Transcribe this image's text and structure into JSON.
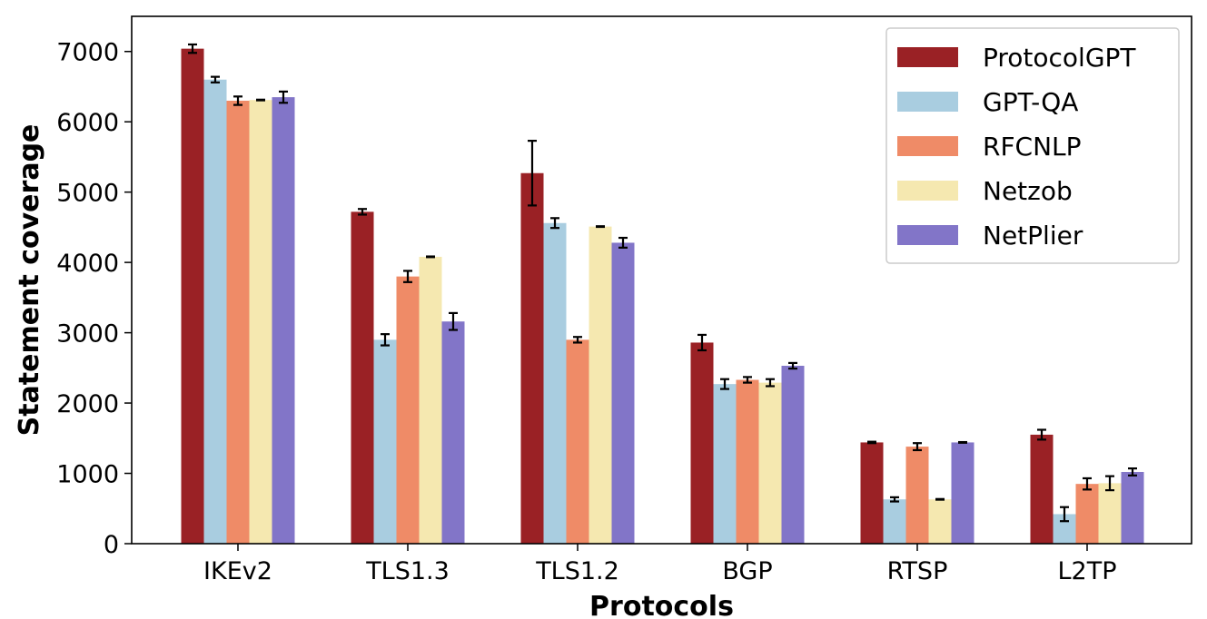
{
  "chart_data": {
    "type": "bar",
    "title": "",
    "xlabel": "Protocols",
    "ylabel": "Statement coverage",
    "ylim": [
      0,
      7500
    ],
    "yticks": [
      0,
      1000,
      2000,
      3000,
      4000,
      5000,
      6000,
      7000
    ],
    "categories": [
      "IKEv2",
      "TLS1.3",
      "TLS1.2",
      "BGP",
      "RTSP",
      "L2TP"
    ],
    "legend_position": "top-right",
    "grid": false,
    "series": [
      {
        "name": "ProtocolGPT",
        "color": "#9a2125",
        "values": [
          7040,
          4720,
          5270,
          2860,
          1440,
          1550
        ],
        "errors": [
          60,
          40,
          460,
          110,
          10,
          70
        ]
      },
      {
        "name": "GPT-QA",
        "color": "#a9cde0",
        "values": [
          6600,
          2900,
          4560,
          2270,
          630,
          420
        ],
        "errors": [
          40,
          80,
          70,
          70,
          30,
          100
        ]
      },
      {
        "name": "RFCNLP",
        "color": "#ef8b67",
        "values": [
          6300,
          3800,
          2900,
          2330,
          1380,
          850
        ],
        "errors": [
          60,
          80,
          40,
          40,
          50,
          80
        ]
      },
      {
        "name": "Netzob",
        "color": "#f5e8b0",
        "values": [
          6310,
          4080,
          4510,
          2290,
          630,
          860
        ],
        "errors": [
          5,
          5,
          5,
          50,
          5,
          100
        ]
      },
      {
        "name": "NetPlier",
        "color": "#8275c8",
        "values": [
          6350,
          3160,
          4280,
          2530,
          1440,
          1020
        ],
        "errors": [
          80,
          120,
          70,
          40,
          5,
          50
        ]
      }
    ]
  }
}
